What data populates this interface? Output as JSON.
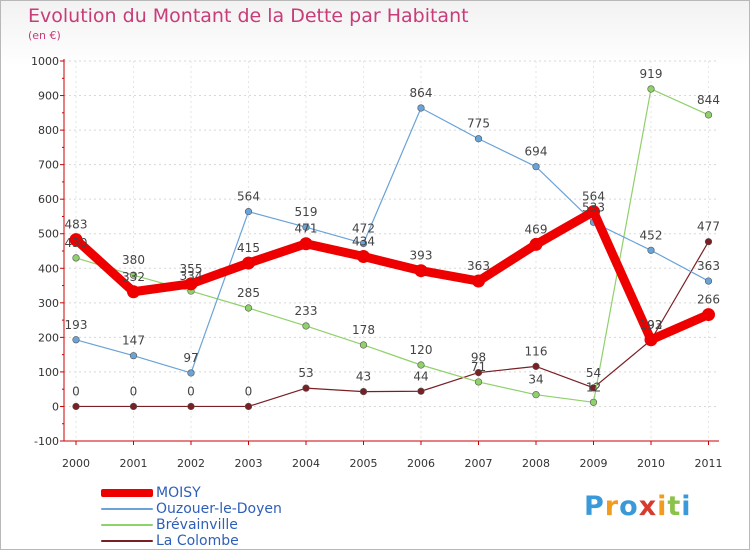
{
  "header": {
    "title": "Evolution du Montant de la Dette par Habitant",
    "subtitle": "(en €)"
  },
  "logo": {
    "text": "Proxiti",
    "colors": [
      "#3a9ad9",
      "#f29b1d",
      "#3a9ad9",
      "#d63b2e",
      "#f29b1d",
      "#8bc34a",
      "#3a9ad9"
    ]
  },
  "chart_data": {
    "type": "line",
    "title": "Evolution du Montant de la Dette par Habitant",
    "subtitle": "(en €)",
    "xlabel": "",
    "ylabel": "",
    "categories": [
      "2000",
      "2001",
      "2002",
      "2003",
      "2004",
      "2005",
      "2006",
      "2007",
      "2008",
      "2009",
      "2010",
      "2011"
    ],
    "ylim": [
      -100,
      1000
    ],
    "yticks": [
      -100,
      0,
      100,
      200,
      300,
      400,
      500,
      600,
      700,
      800,
      900,
      1000
    ],
    "grid": "horizontal dotted",
    "legend": "bottom-left",
    "series": [
      {
        "name": "La Colombe",
        "color": "#7a1f24",
        "width": 1.2,
        "values": [
          0,
          0,
          0,
          0,
          53,
          43,
          44,
          98,
          116,
          54,
          192,
          477
        ],
        "labels": [
          "0",
          "0",
          "0",
          "0",
          "53",
          "43",
          "44",
          "98",
          "116",
          "54",
          "192",
          "477"
        ]
      },
      {
        "name": "Brévainville",
        "color": "#8fd16a",
        "width": 1.2,
        "values": [
          430,
          380,
          334,
          285,
          233,
          178,
          120,
          71,
          34,
          12,
          919,
          844
        ],
        "labels": [
          "430",
          "380",
          "334",
          "285",
          "233",
          "178",
          "120",
          "71",
          "34",
          "12",
          "919",
          "844"
        ]
      },
      {
        "name": "Ouzouer-le-Doyen",
        "color": "#6aa3d8",
        "width": 1.2,
        "values": [
          193,
          147,
          97,
          564,
          519,
          472,
          864,
          775,
          694,
          533,
          452,
          363
        ],
        "labels": [
          "193",
          "147",
          "97",
          "564",
          "519",
          "472",
          "864",
          "775",
          "694",
          "533",
          "452",
          "363"
        ]
      },
      {
        "name": "MOISY",
        "color": "#ee0000",
        "width": 9,
        "values": [
          483,
          332,
          355,
          415,
          471,
          434,
          393,
          363,
          469,
          564,
          193,
          266
        ],
        "labels": [
          "483",
          "332",
          "355",
          "415",
          "471",
          "434",
          "393",
          "363",
          "469",
          "564",
          "193",
          "266"
        ]
      }
    ],
    "legend_order": [
      "MOISY",
      "Ouzouer-le-Doyen",
      "Brévainville",
      "La Colombe"
    ]
  }
}
